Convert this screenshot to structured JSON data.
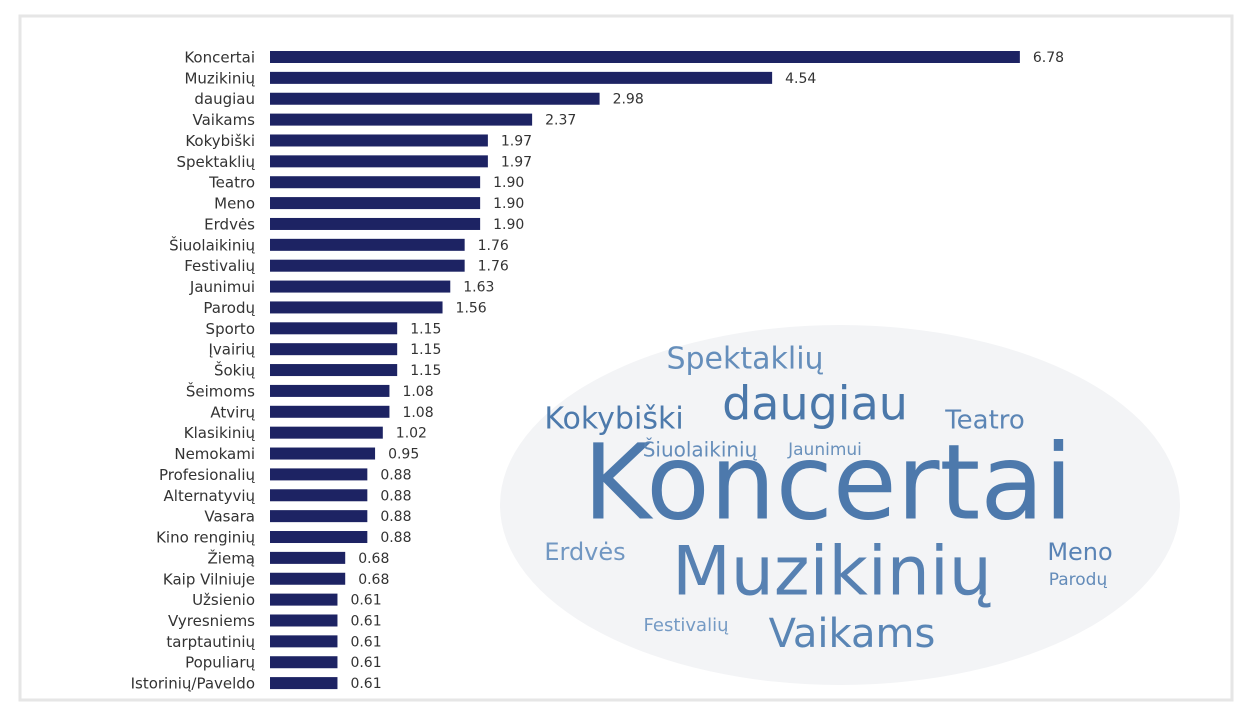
{
  "chart_data": {
    "type": "barh",
    "categories": [
      "Koncertai",
      "Muzikinių",
      "daugiau",
      "Vaikams",
      "Kokybiški",
      "Spektaklių",
      "Teatro",
      "Meno",
      "Erdvės",
      "Šiuolaikinių",
      "Festivalių",
      "Jaunimui",
      "Parodų",
      "Sporto",
      "Įvairių",
      "Šokių",
      "Šeimoms",
      "Atvirų",
      "Klasikinių",
      "Nemokami",
      "Profesionalių",
      "Alternatyvių",
      "Vasara",
      "Kino renginių",
      "Žiemą",
      "Kaip Vilniuje",
      "Užsienio",
      "Vyresniems",
      "tarptautinių",
      "Populiarų",
      "Istorinių/Paveldo"
    ],
    "values": [
      6.78,
      4.54,
      2.98,
      2.37,
      1.97,
      1.97,
      1.9,
      1.9,
      1.9,
      1.76,
      1.76,
      1.63,
      1.56,
      1.15,
      1.15,
      1.15,
      1.08,
      1.08,
      1.02,
      0.95,
      0.88,
      0.88,
      0.88,
      0.88,
      0.68,
      0.68,
      0.61,
      0.61,
      0.61,
      0.61,
      0.61
    ],
    "value_labels": [
      "6.78",
      "4.54",
      "2.98",
      "2.37",
      "1.97",
      "1.97",
      "1.90",
      "1.90",
      "1.90",
      "1.76",
      "1.76",
      "1.63",
      "1.56",
      "1.15",
      "1.15",
      "1.15",
      "1.08",
      "1.08",
      "1.02",
      "0.95",
      "0.88",
      "0.88",
      "0.88",
      "0.88",
      "0.68",
      "0.68",
      "0.61",
      "0.61",
      "0.61",
      "0.61",
      "0.61"
    ],
    "color": "#1d2363",
    "xlim": [
      0,
      7
    ]
  },
  "word_cloud": {
    "words": [
      "Koncertai",
      "Muzikinių",
      "daugiau",
      "Vaikams",
      "Kokybiški",
      "Spektaklių",
      "Teatro",
      "Erdvės",
      "Meno",
      "Šiuolaikinių",
      "Jaunimui",
      "Festivalių",
      "Parodų"
    ]
  }
}
